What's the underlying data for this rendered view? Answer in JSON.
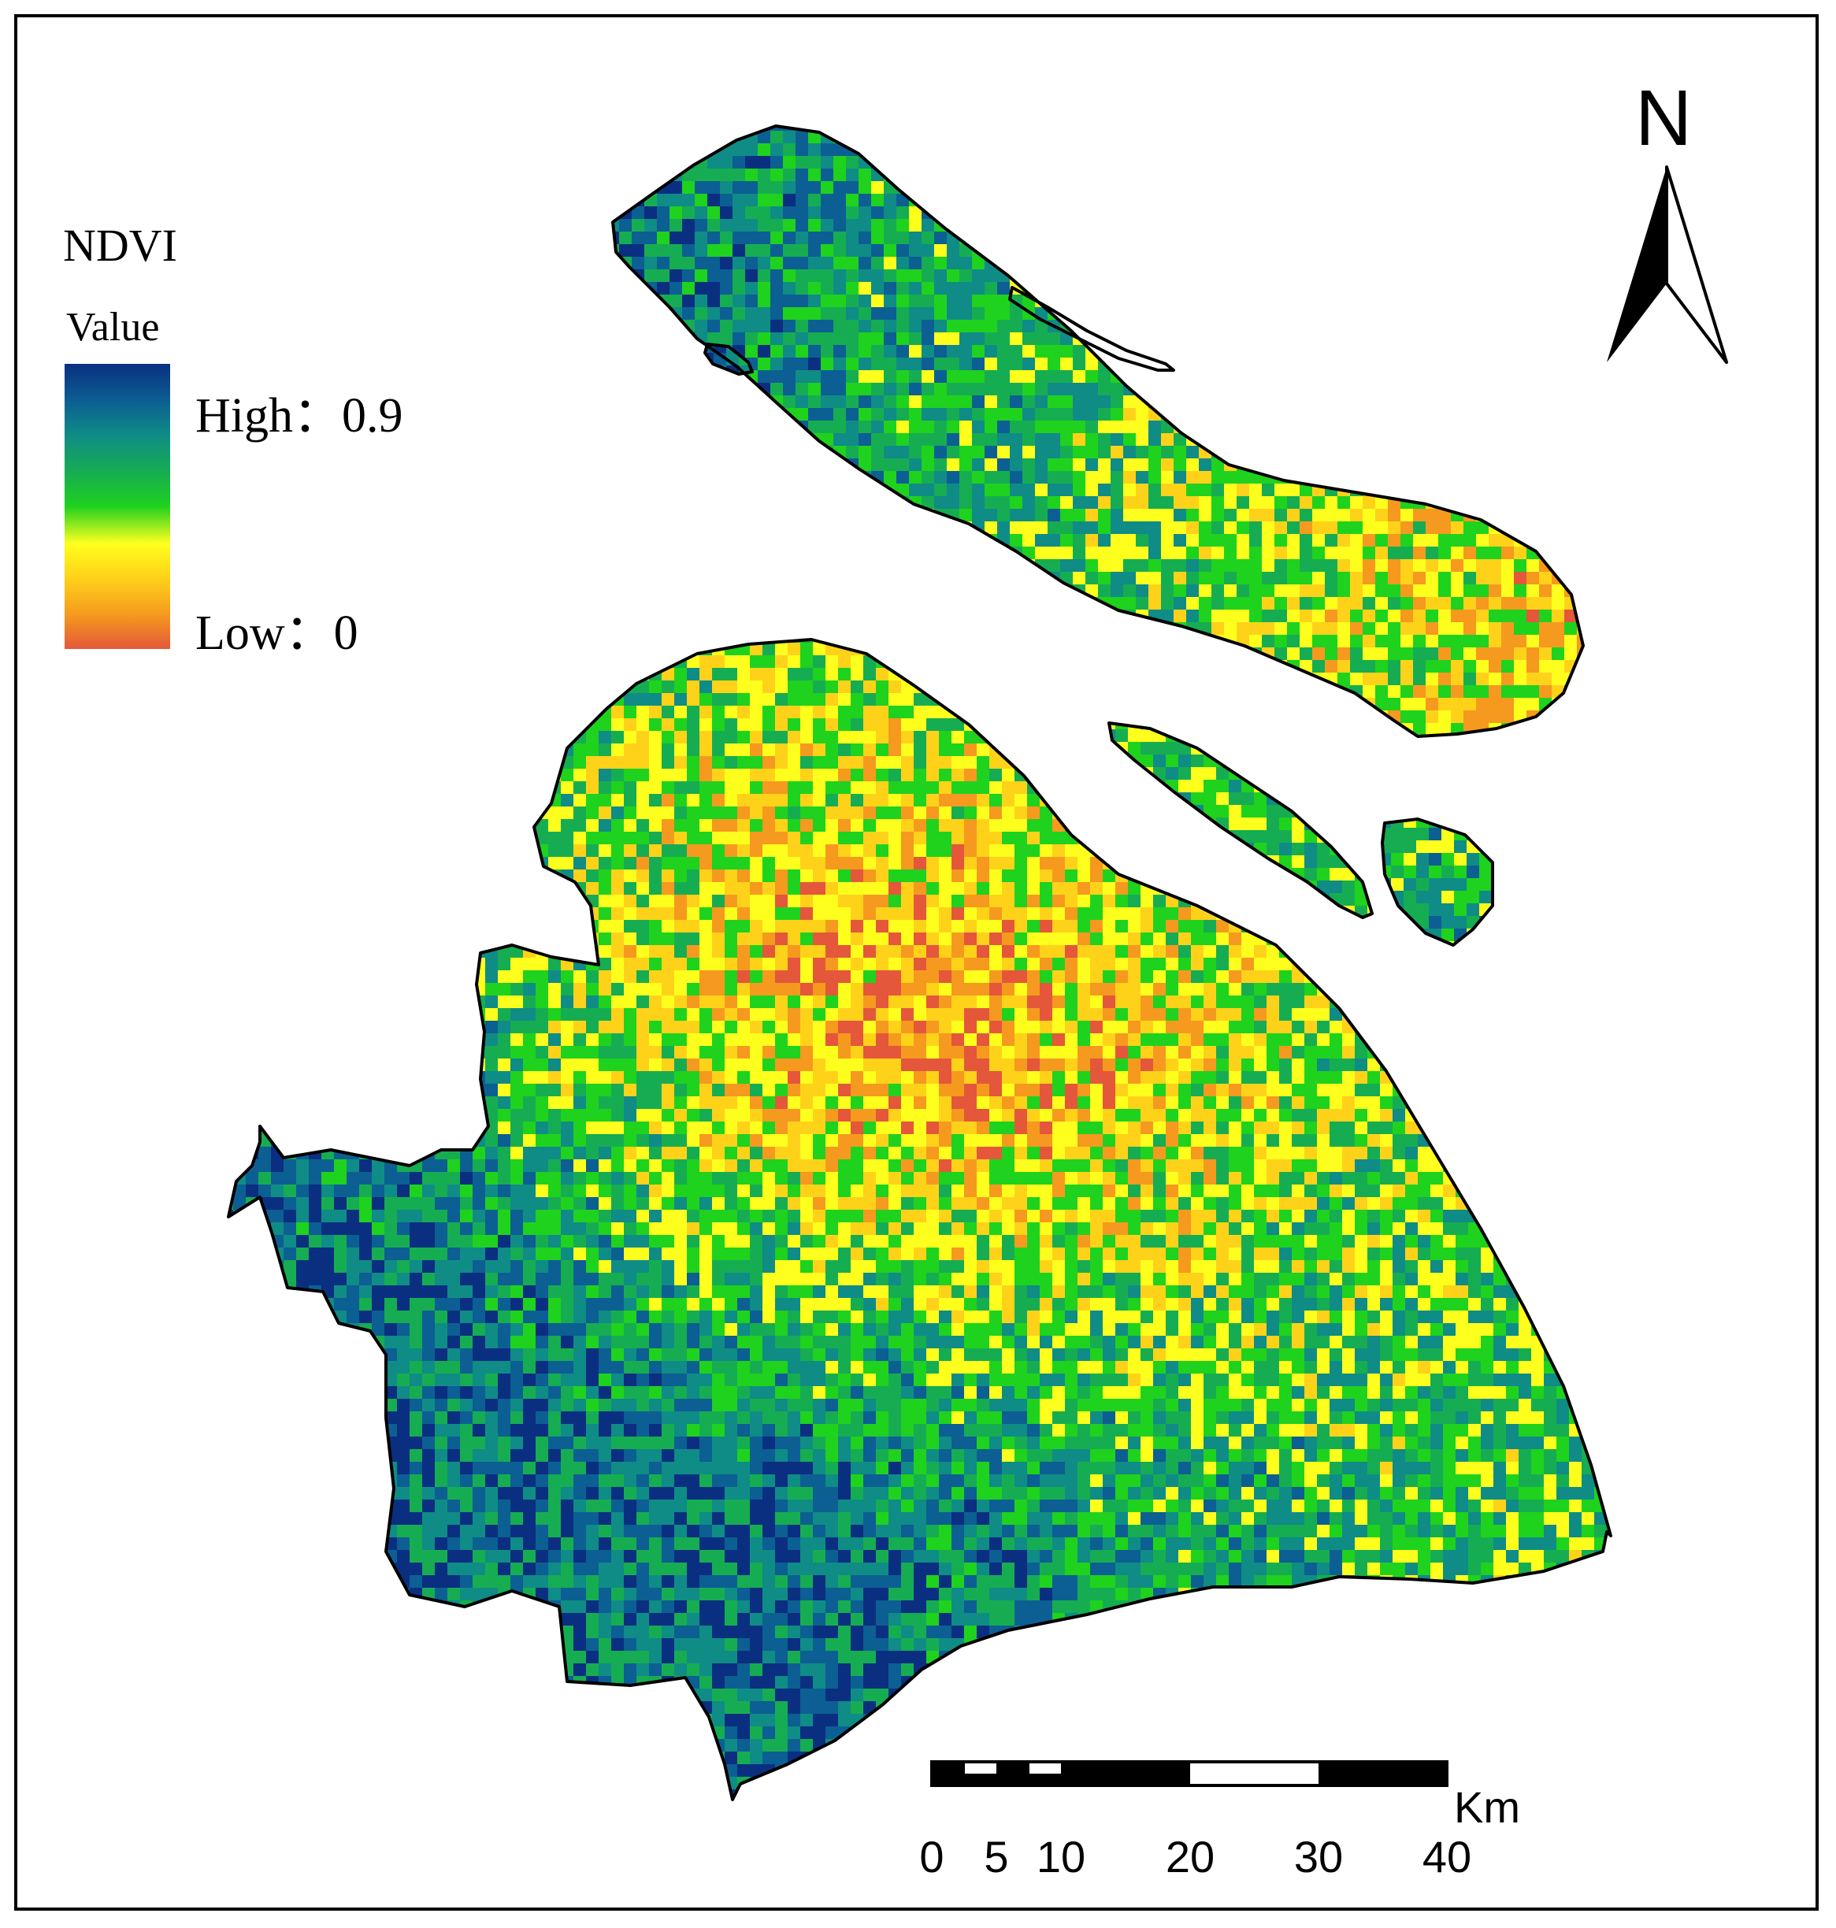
{
  "legend": {
    "title": "NDVI",
    "subtitle": "Value",
    "high_label": "High：0.9",
    "low_label": "Low：0",
    "ramp_colors": [
      "#e4573a",
      "#f59a1e",
      "#ffd21a",
      "#ffff1e",
      "#1fd21e",
      "#16ad52",
      "#0f8c86",
      "#0c5f92",
      "#0a2f80"
    ]
  },
  "north_arrow": {
    "letter": "N",
    "icon": "north-arrow-icon"
  },
  "scale_bar": {
    "unit": "Km",
    "ticks": [
      "0",
      "5",
      "10",
      "20",
      "30",
      "40"
    ]
  },
  "colors": {
    "frame": "#000000",
    "boundary": "#000000"
  }
}
